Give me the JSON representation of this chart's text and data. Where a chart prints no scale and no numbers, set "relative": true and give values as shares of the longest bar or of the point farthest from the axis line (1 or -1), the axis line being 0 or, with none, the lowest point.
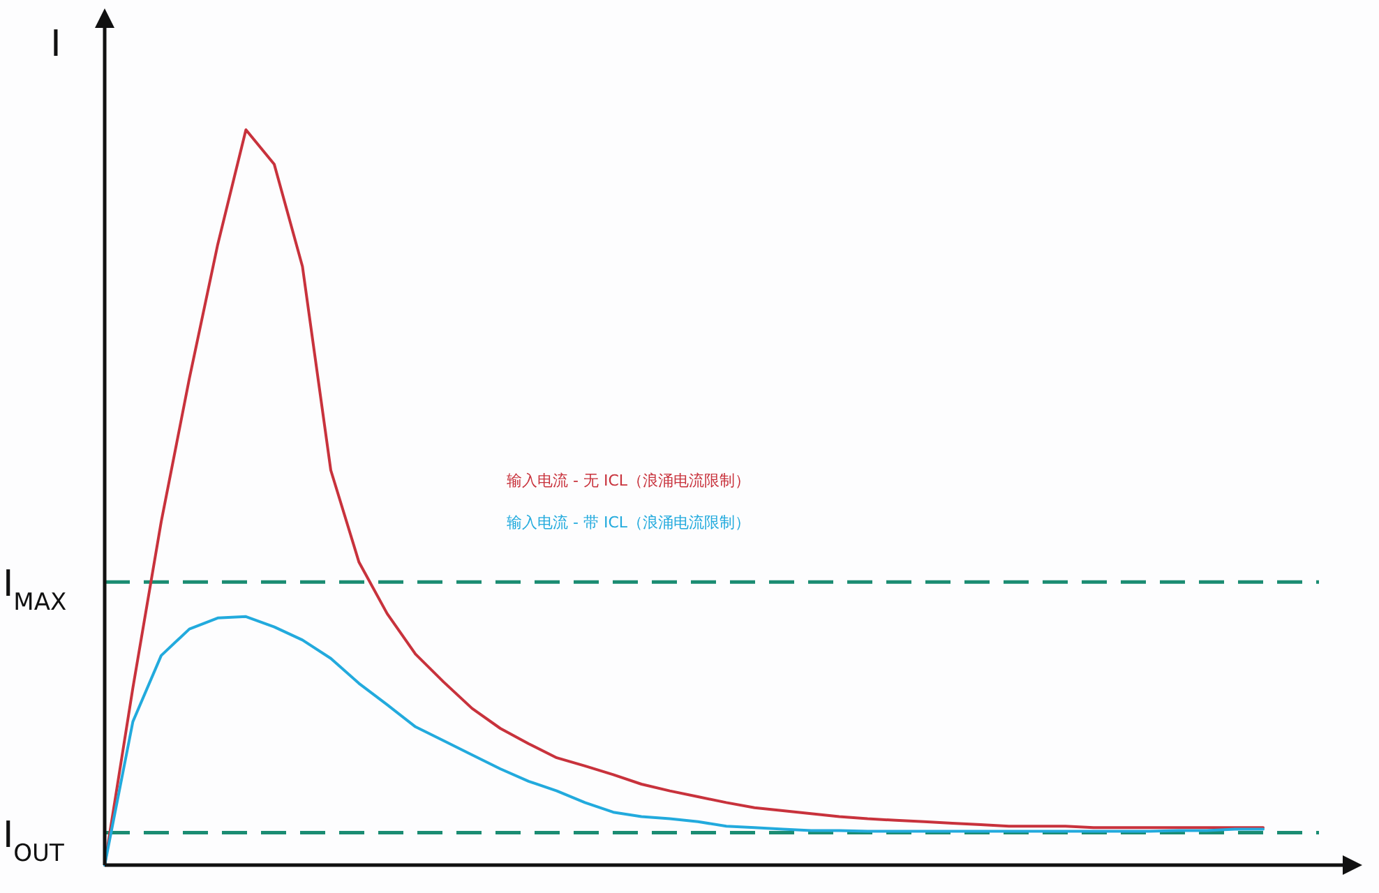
{
  "chart_data": {
    "type": "line",
    "relative": true,
    "ylabel": "I",
    "legend": "center",
    "categories": [
      null,
      null,
      null,
      null,
      null,
      null,
      null,
      null,
      null,
      null,
      null,
      null,
      null,
      null,
      null,
      null,
      null,
      null,
      null,
      null,
      null,
      null,
      null,
      null,
      null,
      null,
      null,
      null,
      null,
      null,
      null,
      null,
      null,
      null,
      null,
      null,
      null,
      null,
      null,
      null,
      null,
      null
    ],
    "series": [
      {
        "name": "输入电流 - 无 ICL（浪涌电流限制）",
        "color": "#c8323c",
        "values": [
          0,
          0.241,
          0.467,
          0.662,
          0.844,
          1,
          0.953,
          0.814,
          0.537,
          0.412,
          0.342,
          0.287,
          0.249,
          0.213,
          0.186,
          0.165,
          0.146,
          0.135,
          0.123,
          0.11,
          0.101,
          0.093,
          0.085,
          0.078,
          0.074,
          0.07,
          0.066,
          0.063,
          0.061,
          0.059,
          0.057,
          0.055,
          0.053,
          0.053,
          0.053,
          0.051,
          0.051,
          0.051,
          0.051,
          0.051,
          0.051,
          0.051
        ]
      },
      {
        "name": "输入电流 - 带 ICL（浪涌电流限制）",
        "color": "#22aadd",
        "values": [
          0,
          0.195,
          0.285,
          0.321,
          0.336,
          0.338,
          0.324,
          0.306,
          0.281,
          0.247,
          0.218,
          0.188,
          0.169,
          0.15,
          0.131,
          0.114,
          0.101,
          0.085,
          0.072,
          0.066,
          0.063,
          0.059,
          0.053,
          0.051,
          0.049,
          0.047,
          0.047,
          0.046,
          0.046,
          0.046,
          0.046,
          0.046,
          0.046,
          0.046,
          0.046,
          0.046,
          0.046,
          0.046,
          0.047,
          0.047,
          0.049,
          0.049
        ]
      }
    ],
    "ref_lines": [
      {
        "axis": "y",
        "value": 0.385,
        "label": "I$_{MAX}$",
        "color": "#1a8c72",
        "line_style": "dashed"
      },
      {
        "axis": "y",
        "value": 0.044,
        "label": "I$_{OUT}$",
        "color": "#1a8c72",
        "line_style": "dashed"
      }
    ]
  }
}
